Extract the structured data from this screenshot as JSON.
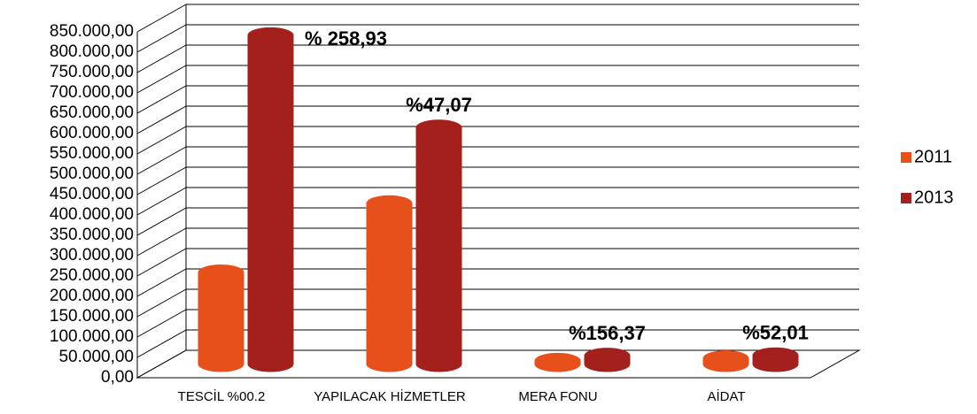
{
  "chart_data": {
    "type": "bar3d",
    "categories": [
      "TESCİL %00.2",
      "YAPILACAK HİZMETLER",
      "MERA FONU",
      "AİDAT"
    ],
    "series": [
      {
        "name": "2011",
        "color": "#e8501b",
        "values": [
          225000,
          395000,
          8000,
          14000
        ]
      },
      {
        "name": "2013",
        "color": "#a3201c",
        "values": [
          808000,
          581000,
          20500,
          21300
        ]
      }
    ],
    "annotations": [
      "% 258,93",
      "%47,07",
      "%156,37",
      "%52,01"
    ],
    "ylim": [
      0,
      850000
    ],
    "yticks": [
      {
        "value": 0,
        "label": "0,00"
      },
      {
        "value": 50000,
        "label": "50.000,00"
      },
      {
        "value": 100000,
        "label": "100.000,00"
      },
      {
        "value": 150000,
        "label": "150.000,00"
      },
      {
        "value": 200000,
        "label": "200.000,00"
      },
      {
        "value": 250000,
        "label": "250.000,00"
      },
      {
        "value": 300000,
        "label": "300.000,00"
      },
      {
        "value": 350000,
        "label": "350.000,00"
      },
      {
        "value": 400000,
        "label": "400.000,00"
      },
      {
        "value": 450000,
        "label": "450.000,00"
      },
      {
        "value": 500000,
        "label": "500.000,00"
      },
      {
        "value": 550000,
        "label": "550.000,00"
      },
      {
        "value": 600000,
        "label": "600.000,00"
      },
      {
        "value": 650000,
        "label": "650.000,00"
      },
      {
        "value": 700000,
        "label": "700.000,00"
      },
      {
        "value": 750000,
        "label": "750.000,00"
      },
      {
        "value": 800000,
        "label": "800.000,00"
      },
      {
        "value": 850000,
        "label": "850.000,00"
      }
    ],
    "grid": true,
    "legend": "right"
  }
}
